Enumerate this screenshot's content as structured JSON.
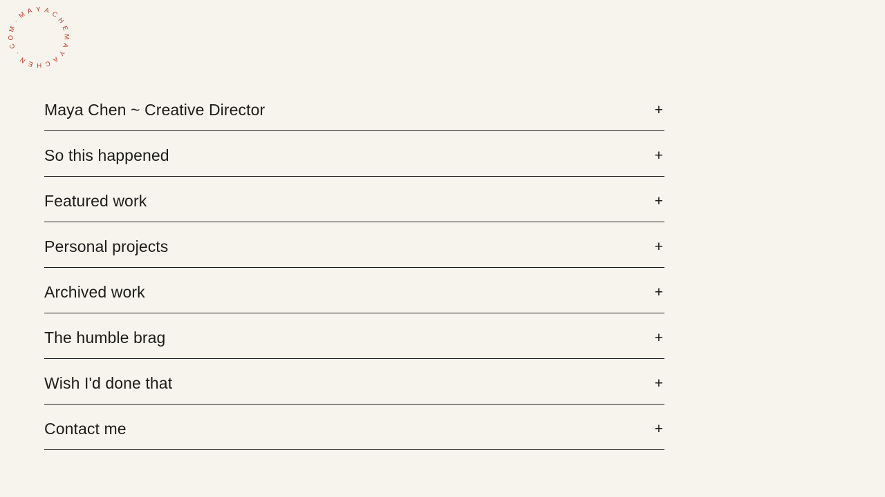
{
  "logo": {
    "text": "·MAYACHEMAYACHEN.COM",
    "color": "#c43a2c"
  },
  "accordion": {
    "items": [
      {
        "label": "Maya Chen ~ Creative Director"
      },
      {
        "label": "So this happened"
      },
      {
        "label": "Featured work"
      },
      {
        "label": "Personal projects"
      },
      {
        "label": "Archived work"
      },
      {
        "label": "The humble brag"
      },
      {
        "label": "Wish I'd done that"
      },
      {
        "label": "Contact me"
      }
    ]
  },
  "ui": {
    "plus": "+"
  },
  "colors": {
    "background": "#f7f4ed",
    "text": "#1c1c1a",
    "line": "#1c1c1a",
    "accent_red": "#c43a2c"
  }
}
